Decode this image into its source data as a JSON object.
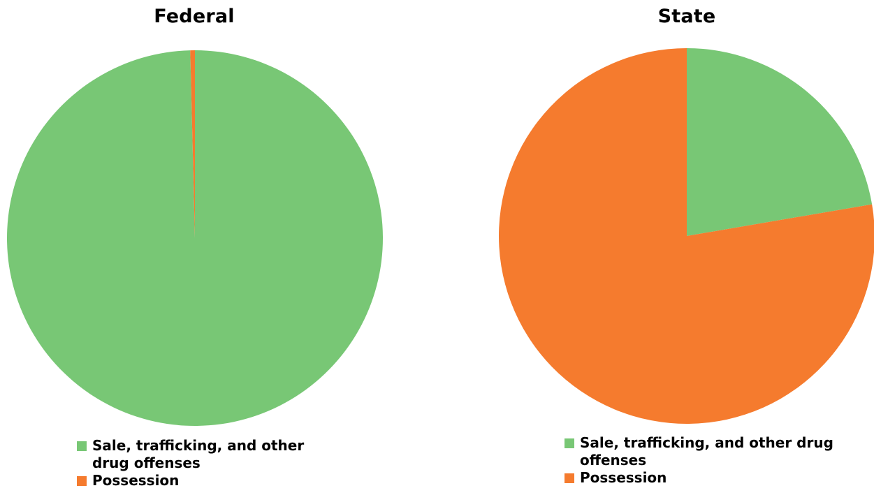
{
  "chart_data": [
    {
      "type": "pie",
      "title": "Federal",
      "categories": [
        "Sale, trafficking, and other drug offenses",
        "Possession"
      ],
      "values": [
        99.6,
        0.4
      ],
      "colors": [
        "#78c775",
        "#f57b2e"
      ],
      "legend_position": "bottom"
    },
    {
      "type": "pie",
      "title": "State",
      "categories": [
        "Sale, trafficking, and other drug offenses",
        "Possession"
      ],
      "values": [
        22.3,
        77.7
      ],
      "colors": [
        "#78c775",
        "#f57b2e"
      ],
      "legend_position": "bottom"
    }
  ]
}
